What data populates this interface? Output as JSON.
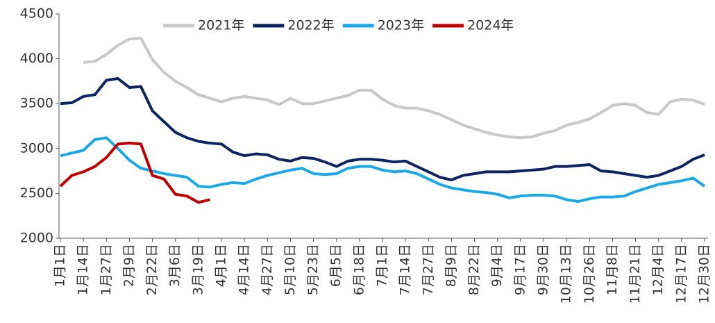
{
  "chart_data": {
    "type": "line",
    "categories": [
      "1月1日",
      null,
      "1月14日",
      null,
      "1月27日",
      null,
      "2月9日",
      null,
      "2月22日",
      null,
      "3月6日",
      null,
      "3月19日",
      null,
      "4月1日",
      null,
      "4月14日",
      null,
      "4月27日",
      null,
      "5月10日",
      null,
      "5月23日",
      null,
      "6月5日",
      null,
      "6月18日",
      null,
      "7月1日",
      null,
      "7月14日",
      null,
      "7月27日",
      null,
      "8月9日",
      null,
      "8月22日",
      null,
      "9月4日",
      null,
      "9月17日",
      null,
      "9月30日",
      null,
      "10月13日",
      null,
      "10月26日",
      null,
      "11月8日",
      null,
      "11月21日",
      null,
      "12月4日",
      null,
      "12月17日",
      null,
      "12月30日"
    ],
    "series": [
      {
        "name": "2021年",
        "color": "#c8c8c8",
        "values": [
          null,
          null,
          3960,
          3970,
          4050,
          4150,
          4220,
          4230,
          3990,
          3850,
          3750,
          3680,
          3600,
          3560,
          3520,
          3560,
          3580,
          3560,
          3540,
          3490,
          3560,
          3500,
          3500,
          3530,
          3560,
          3590,
          3650,
          3650,
          3550,
          3480,
          3450,
          3450,
          3420,
          3380,
          3320,
          3260,
          3220,
          3180,
          3150,
          3130,
          3120,
          3130,
          3170,
          3200,
          3260,
          3290,
          3330,
          3400,
          3480,
          3500,
          3480,
          3400,
          3380,
          3520,
          3550,
          3540,
          3490
        ]
      },
      {
        "name": "2022年",
        "color": "#0c2461",
        "values": [
          3500,
          3510,
          3580,
          3600,
          3760,
          3780,
          3680,
          3690,
          3420,
          3300,
          3180,
          3120,
          3080,
          3060,
          3050,
          2960,
          2920,
          2940,
          2930,
          2880,
          2860,
          2900,
          2890,
          2850,
          2800,
          2860,
          2880,
          2880,
          2870,
          2850,
          2860,
          2800,
          2740,
          2680,
          2650,
          2700,
          2720,
          2740,
          2740,
          2740,
          2750,
          2760,
          2770,
          2800,
          2800,
          2810,
          2820,
          2750,
          2740,
          2720,
          2700,
          2680,
          2700,
          2750,
          2800,
          2880,
          2930
        ]
      },
      {
        "name": "2023年",
        "color": "#1aa9e6",
        "values": [
          2920,
          2950,
          2980,
          3100,
          3120,
          3000,
          2870,
          2780,
          2750,
          2720,
          2700,
          2680,
          2580,
          2570,
          2600,
          2620,
          2610,
          2660,
          2700,
          2730,
          2760,
          2780,
          2720,
          2710,
          2720,
          2780,
          2800,
          2800,
          2760,
          2740,
          2750,
          2720,
          2660,
          2600,
          2560,
          2540,
          2520,
          2510,
          2490,
          2450,
          2470,
          2480,
          2480,
          2470,
          2430,
          2410,
          2440,
          2460,
          2460,
          2470,
          2520,
          2560,
          2600,
          2620,
          2640,
          2670,
          2580
        ]
      },
      {
        "name": "2024年",
        "color": "#c00000",
        "values": [
          2580,
          2700,
          2740,
          2800,
          2900,
          3050,
          3060,
          3050,
          2700,
          2660,
          2490,
          2470,
          2400,
          2430,
          null,
          null,
          null,
          null,
          null,
          null,
          null,
          null,
          null,
          null,
          null,
          null,
          null,
          null,
          null,
          null,
          null,
          null,
          null,
          null,
          null,
          null,
          null,
          null,
          null,
          null,
          null,
          null,
          null,
          null,
          null,
          null,
          null,
          null,
          null,
          null,
          null,
          null,
          null,
          null,
          null,
          null,
          null
        ]
      }
    ],
    "ylim": [
      2000,
      4500
    ],
    "yticks": [
      2000,
      2500,
      3000,
      3500,
      4000,
      4500
    ],
    "grid": false,
    "legend": "top"
  }
}
